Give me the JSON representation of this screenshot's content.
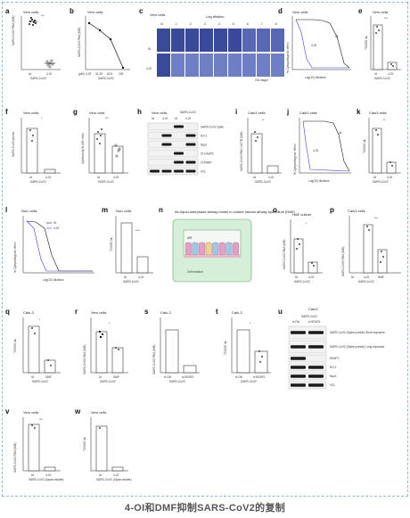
{
  "caption": "4-OI和DMF抑制SARS-CoV2的复制",
  "panels": {
    "a": {
      "label": "a",
      "title": "Vero cells",
      "ylabel": "SARS-CoV2 RNA (N/B)",
      "cats": [
        "Ut",
        "4-OI"
      ],
      "xlabel": "SARS-CoV2",
      "sig": "***"
    },
    "b": {
      "label": "b",
      "title": "Vero cells",
      "ylabel": "SARS-CoV2 RNA (N/B)",
      "ticks": [
        "0.25",
        "31.25",
        "62.5",
        "125"
      ],
      "xlabel": "SARS-CoV2",
      "unit": "(μM)"
    },
    "c": {
      "label": "c",
      "title": "Vero cells",
      "subtitle": "Log dilution",
      "cols": [
        "Ut",
        "-1",
        "-2",
        "-3",
        "-4",
        "-5",
        "-6",
        "-7",
        "-8"
      ],
      "rows": [
        "Ut",
        "4-OI"
      ],
      "note": "20x magni"
    },
    "d": {
      "label": "d",
      "title": "Vero cells",
      "ylabel": "% Cytopathogenic effect",
      "xlabel": "Log(10) dilutions",
      "series": [
        "Ut",
        "4-OI"
      ]
    },
    "e": {
      "label": "e",
      "title": "Vero cells",
      "ylabel": "TCID50 mL",
      "cats": [
        "Ut",
        "4-OI"
      ],
      "xlabel": "SARS-CoV2",
      "sig": "***"
    },
    "f": {
      "label": "f",
      "title": "Vero cells",
      "ylabel": "SARS-CoV2 pfu/mL",
      "cats": [
        "Ut",
        "4-OI"
      ],
      "xlabel": "SARS-CoV2",
      "sig": "*"
    },
    "g": {
      "label": "g",
      "title": "Vero cells",
      "ylabel": "Cytotoxicity % (SR cells)",
      "cats": [
        "Ut",
        "4-OI"
      ],
      "xlabel": "SARS-CoV2",
      "sig": "***"
    },
    "h": {
      "label": "h",
      "title": "Vero cells",
      "header": "SARS-CoV2",
      "cols": [
        "Ut",
        "4-OI",
        "Ut",
        "4-OI"
      ],
      "bands": [
        "SARS-CoV2 spike",
        "HO-1",
        "Nqo1",
        "Cl-CASP3",
        "Cl-PARP",
        "VCL"
      ]
    },
    "i": {
      "label": "i",
      "title": "Calu3 cells",
      "ylabel": "SARS-CoV2 RNA / ACTB (N/B)",
      "cats": [
        "Ut",
        "4-OI"
      ],
      "xlabel": "SARS-CoV2",
      "sig": "**"
    },
    "j": {
      "label": "j",
      "title": "Calu3 cells",
      "ylabel": "% Cytopathogenic effect",
      "xlabel": "Log(10) dilutions",
      "series": [
        "Ut",
        "4-OI"
      ]
    },
    "k": {
      "label": "k",
      "title": "Calu3 cells",
      "ylabel": "TCID50 mL",
      "cats": [
        "Ut",
        "4-OI"
      ],
      "xlabel": "SARS-CoV2",
      "sig": "**"
    },
    "l": {
      "label": "l",
      "title": "NuLi cells",
      "ylabel": "% Cytopathogenic effect",
      "xlabel": "Log(10) dilutions",
      "series": [
        "Ut",
        "4-OI"
      ]
    },
    "m": {
      "label": "m",
      "title": "NuLi cells",
      "ylabel": "TCID50 mL",
      "cats": [
        "Ut",
        "4-OI"
      ],
      "xlabel": "SARS-CoV2",
      "sig": "****"
    },
    "n": {
      "label": "n",
      "title": "Air-liquid-interphase airway model in culture human airway epithelium (HAE)",
      "air": "AIR",
      "medium": "Cell medium"
    },
    "o": {
      "label": "o",
      "title": "HAE culture",
      "ylabel": "SARS-CoV2 RNA (N/B)",
      "cats": [
        "Ut",
        "4-OI"
      ],
      "xlabel": "SARS-CoV2",
      "sig": "*"
    },
    "p": {
      "label": "p",
      "title": "Calu3 cells",
      "ylabel": "SARS-CoV2 RNA (N/B)",
      "cats": [
        "Ut",
        "4-OI",
        "DMF"
      ],
      "xlabel": "SARS-CoV2",
      "sig": "***"
    },
    "q": {
      "label": "q",
      "title": "Calu-3",
      "ylabel": "TCID50 mL",
      "cats": [
        "Ut",
        "DMF"
      ],
      "xlabel": "SARS-CoV2",
      "sig": "*"
    },
    "r": {
      "label": "r",
      "title": "Vero cells",
      "ylabel": "SARS-CoV2 RNA (N/B)",
      "cats": [
        "Ut",
        "DMF"
      ],
      "xlabel": "SARS-CoV2",
      "sig": "*"
    },
    "s": {
      "label": "s",
      "title": "Calu-3",
      "ylabel": "SARS-CoV2 RNA (N/B)",
      "cats": [
        "si Ctrl",
        "si KEAP1"
      ],
      "xlabel": "SARS-CoV2"
    },
    "t": {
      "label": "t",
      "title": "Calu-3",
      "ylabel": "TCID50 mL",
      "cats": [
        "si Ctrl",
        "si KEAP1"
      ],
      "xlabel": "SARS-CoV2",
      "sig": "*"
    },
    "u": {
      "label": "u",
      "title": "Calu3",
      "header": "SARS-CoV2",
      "cols": [
        "si Ctrl",
        "si KEAP1"
      ],
      "bands": [
        "SARS-CoV2 (Spike protein) Short exposure",
        "SARS-CoV2 (Spike protein) Long exposure",
        "KEAP1",
        "HO-1",
        "Nqo1",
        "VCL"
      ]
    },
    "v": {
      "label": "v",
      "title": "Vero cells",
      "ylabel": "SARS-CoV2 RNA (N/B)",
      "cats": [
        "Ut",
        "4-OI"
      ],
      "xlabel": "SARS-CoV2 (Japan isolate)",
      "sig": "***"
    },
    "w": {
      "label": "w",
      "title": "Vero cells",
      "ylabel": "TCID50 mL",
      "cats": [
        "Ut",
        "4-OI"
      ],
      "xlabel": "SARS-CoV2 (Japan isolate)"
    }
  },
  "colors": {
    "ut": "#111111",
    "treated": "#3b3bd6",
    "plaque": "#3a4a9a",
    "band": "#1a1a1a"
  }
}
